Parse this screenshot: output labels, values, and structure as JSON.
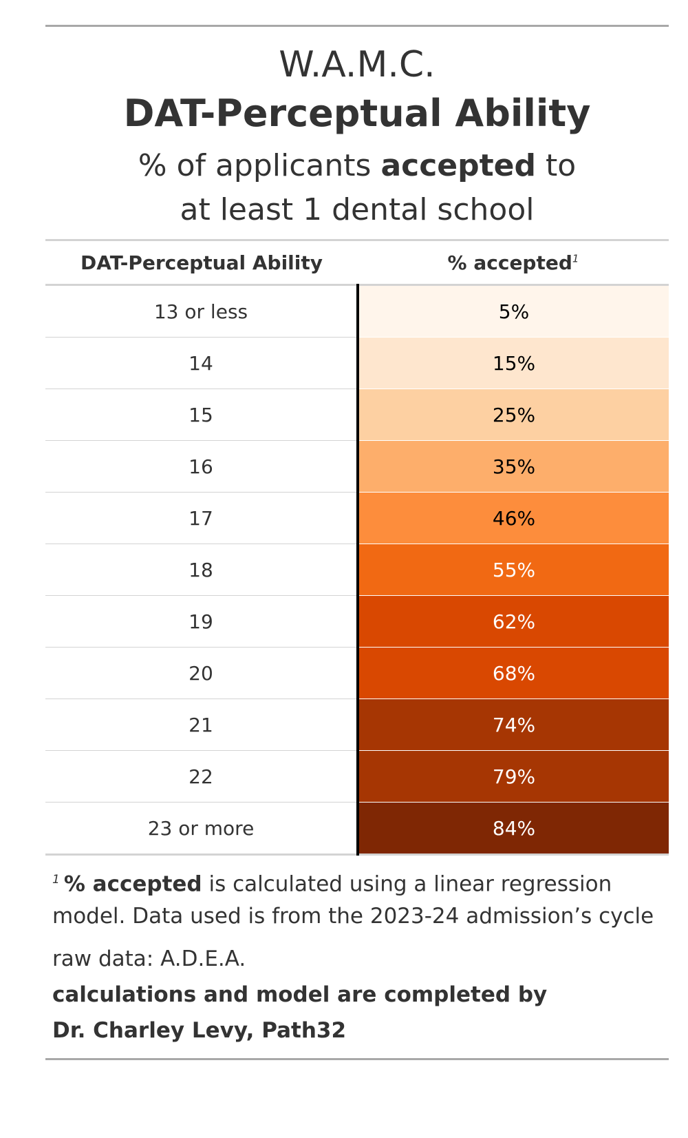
{
  "title": {
    "line1": "W.A.M.C.",
    "line2": "DAT-Perceptual Ability",
    "subtitle_pre": "% of applicants ",
    "subtitle_bold": "accepted",
    "subtitle_post": " to",
    "subtitle_line2": "at least 1 dental school"
  },
  "columns": {
    "score": "DAT-Perceptual Ability",
    "accepted": "% accepted",
    "accepted_footnote_mark": "1"
  },
  "chart_data": {
    "type": "table",
    "title": "DAT-Perceptual Ability",
    "columns": [
      "DAT-Perceptual Ability",
      "% accepted"
    ],
    "rows": [
      {
        "score": "13 or less",
        "accepted": "5%",
        "value": 5,
        "color": "#fff5eb",
        "text_color": "#000000"
      },
      {
        "score": "14",
        "accepted": "15%",
        "value": 15,
        "color": "#fee6ce",
        "text_color": "#000000"
      },
      {
        "score": "15",
        "accepted": "25%",
        "value": 25,
        "color": "#fdd0a2",
        "text_color": "#000000"
      },
      {
        "score": "16",
        "accepted": "35%",
        "value": 35,
        "color": "#fdae6b",
        "text_color": "#000000"
      },
      {
        "score": "17",
        "accepted": "46%",
        "value": 46,
        "color": "#fd8d3c",
        "text_color": "#000000"
      },
      {
        "score": "18",
        "accepted": "55%",
        "value": 55,
        "color": "#f16913",
        "text_color": "#ffffff"
      },
      {
        "score": "19",
        "accepted": "62%",
        "value": 62,
        "color": "#d94801",
        "text_color": "#ffffff"
      },
      {
        "score": "20",
        "accepted": "68%",
        "value": 68,
        "color": "#d94801",
        "text_color": "#ffffff"
      },
      {
        "score": "21",
        "accepted": "74%",
        "value": 74,
        "color": "#a63603",
        "text_color": "#ffffff"
      },
      {
        "score": "22",
        "accepted": "79%",
        "value": 79,
        "color": "#a63603",
        "text_color": "#ffffff"
      },
      {
        "score": "23 or more",
        "accepted": "84%",
        "value": 84,
        "color": "#7f2704",
        "text_color": "#ffffff"
      }
    ]
  },
  "footnote": {
    "mark": "1",
    "bold": "% accepted",
    "text": " is calculated using a linear regression model. Data used is from the 2023-24 admission’s cycle"
  },
  "source": {
    "line1": "raw data: A.D.E.A.",
    "line2": "calculations and model are completed by",
    "line3": "Dr. Charley Levy, Path32"
  }
}
